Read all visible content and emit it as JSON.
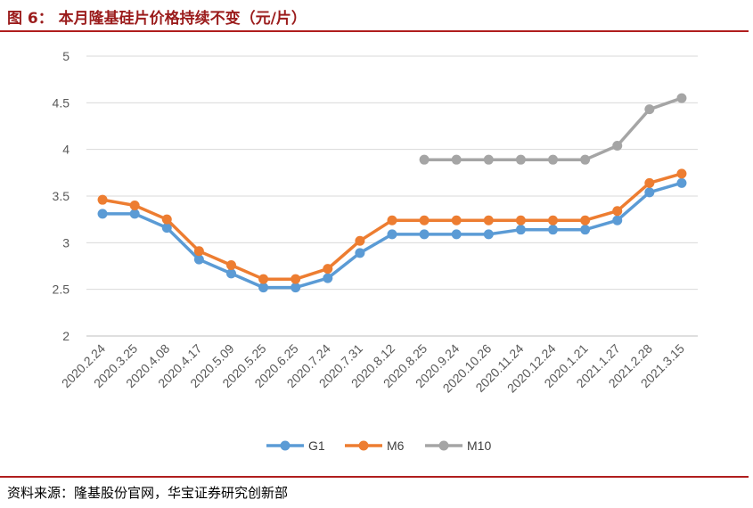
{
  "header": {
    "title": "图 6： 本月隆基硅片价格持续不变（元/片）"
  },
  "footer": {
    "source": "资料来源：隆基股份官网，华宝证券研究创新部"
  },
  "chart_data": {
    "type": "line",
    "title": "",
    "xlabel": "",
    "ylabel": "",
    "ylim": [
      2,
      5
    ],
    "yticks": [
      "2",
      "2.5",
      "3",
      "3.5",
      "4",
      "4.5",
      "5"
    ],
    "grid": true,
    "legend_position": "bottom",
    "categories": [
      "2020.2.24",
      "2020.3.25",
      "2020.4.08",
      "2020.4.17",
      "2020.5.09",
      "2020.5.25",
      "2020.6.25",
      "2020.7.24",
      "2020.7.31",
      "2020.8.12",
      "2020.8.25",
      "2020.9.24",
      "2020.10.26",
      "2020.11.24",
      "2020.12.24",
      "2020.1.21",
      "2021.1.27",
      "2021.2.28",
      "2021.3.15"
    ],
    "series": [
      {
        "name": "G1",
        "color": "#5b9bd5",
        "values": [
          3.31,
          3.31,
          3.16,
          2.82,
          2.67,
          2.52,
          2.52,
          2.62,
          2.89,
          3.09,
          3.09,
          3.09,
          3.09,
          3.14,
          3.14,
          3.14,
          3.24,
          3.54,
          3.64
        ]
      },
      {
        "name": "M6",
        "color": "#ed7d31",
        "values": [
          3.46,
          3.4,
          3.25,
          2.91,
          2.76,
          2.61,
          2.61,
          2.72,
          3.02,
          3.24,
          3.24,
          3.24,
          3.24,
          3.24,
          3.24,
          3.24,
          3.34,
          3.64,
          3.74
        ]
      },
      {
        "name": "M10",
        "color": "#a5a5a5",
        "values": [
          null,
          null,
          null,
          null,
          null,
          null,
          null,
          null,
          null,
          null,
          3.89,
          3.89,
          3.89,
          3.89,
          3.89,
          3.89,
          4.04,
          4.43,
          4.55
        ]
      }
    ]
  }
}
